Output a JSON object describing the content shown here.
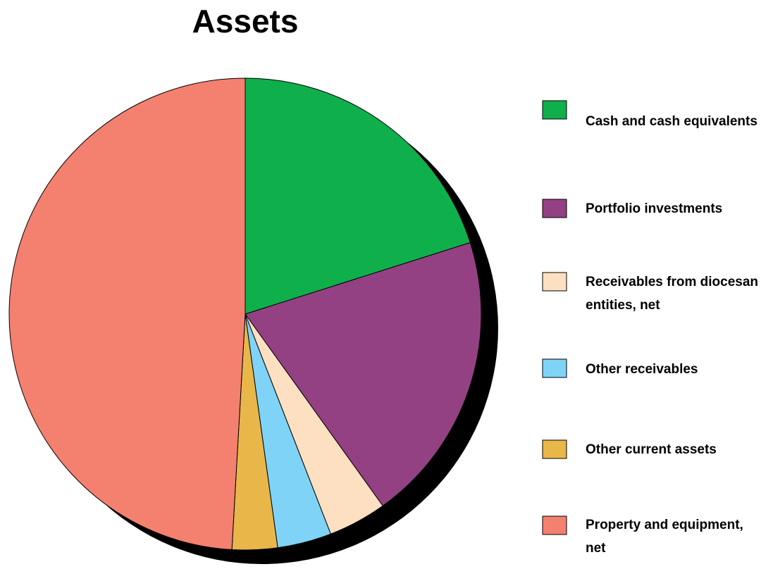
{
  "chart_data": {
    "type": "pie",
    "title": "Assets",
    "categories": [
      "Cash and cash equivalents",
      "Portfolio investments",
      "Receivables from diocesan entities, net",
      "Other receivables",
      "Other current assets",
      "Property and equipment, net"
    ],
    "values": [
      20.1,
      20,
      4,
      3.7,
      3.1,
      49.1
    ],
    "colors": [
      "#0fb04c",
      "#934183",
      "#fddfc1",
      "#7fd3f7",
      "#e9b64a",
      "#f48070"
    ],
    "legend": "right"
  }
}
